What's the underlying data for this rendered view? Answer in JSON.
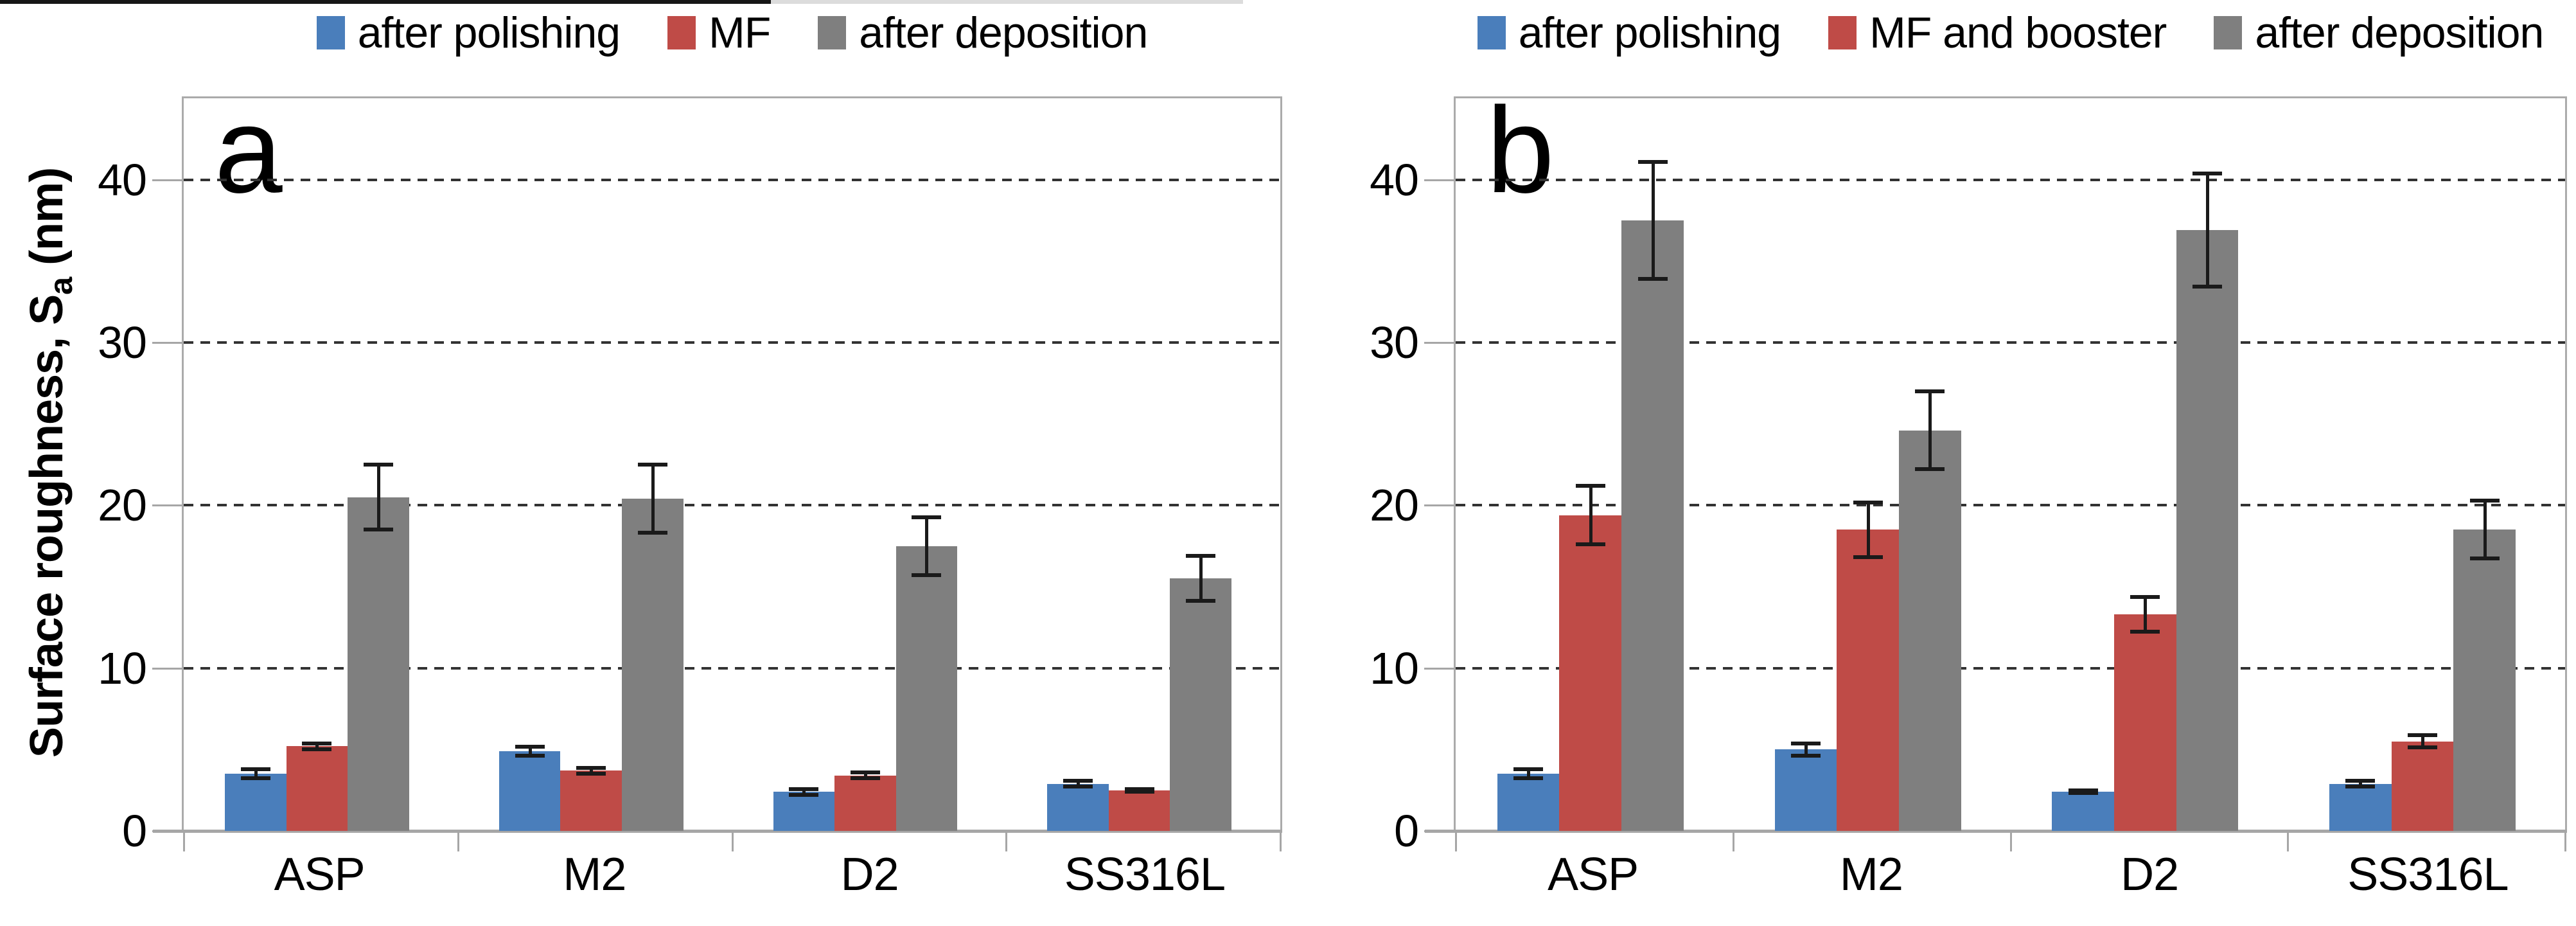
{
  "figure": {
    "crop_line": {
      "dark_color": "#161616",
      "light_color": "#dcdcdc"
    },
    "colors": {
      "blue": "#4a7ebb",
      "red": "#bf4b47",
      "gray": "#7f7f7f",
      "axis": "#a6a6a6",
      "grid": "#333333",
      "error": "#1a1a1a",
      "border": "#ababab"
    }
  },
  "chart_data": [
    {
      "type": "bar",
      "panel_label": "a",
      "legend_position": "top",
      "grid": "horizontal dashed",
      "ylabel_parts": {
        "prefix": "Surface roughness, S",
        "sub": "a",
        "suffix": " (nm)"
      },
      "ylim": [
        0,
        45
      ],
      "yticks": [
        0,
        10,
        20,
        30,
        40
      ],
      "categories": [
        "ASP",
        "M2",
        "D2",
        "SS316L"
      ],
      "series": [
        {
          "name": "after polishing",
          "color_key": "blue",
          "values": [
            3.5,
            4.9,
            2.4,
            2.9
          ],
          "errors": [
            0.4,
            0.4,
            0.3,
            0.3
          ]
        },
        {
          "name": "MF",
          "color_key": "red",
          "values": [
            5.2,
            3.7,
            3.4,
            2.5
          ],
          "errors": [
            0.3,
            0.3,
            0.3,
            0.2
          ]
        },
        {
          "name": "after deposition",
          "color_key": "gray",
          "values": [
            20.5,
            20.4,
            17.5,
            15.5
          ],
          "errors": [
            2.1,
            2.2,
            1.9,
            1.5
          ]
        }
      ]
    },
    {
      "type": "bar",
      "panel_label": "b",
      "legend_position": "top",
      "grid": "horizontal dashed",
      "ylabel_parts": null,
      "ylim": [
        0,
        45
      ],
      "yticks": [
        0,
        10,
        20,
        30,
        40
      ],
      "categories": [
        "ASP",
        "M2",
        "D2",
        "SS316L"
      ],
      "series": [
        {
          "name": "after polishing",
          "color_key": "blue",
          "values": [
            3.5,
            5.0,
            2.4,
            2.9
          ],
          "errors": [
            0.4,
            0.5,
            0.2,
            0.3
          ]
        },
        {
          "name": "MF and booster",
          "color_key": "red",
          "values": [
            19.4,
            18.5,
            13.3,
            5.5
          ],
          "errors": [
            1.9,
            1.8,
            1.2,
            0.5
          ]
        },
        {
          "name": "after deposition",
          "color_key": "gray",
          "values": [
            37.5,
            24.6,
            36.9,
            18.5
          ],
          "errors": [
            3.7,
            2.5,
            3.6,
            1.9
          ]
        }
      ]
    }
  ]
}
